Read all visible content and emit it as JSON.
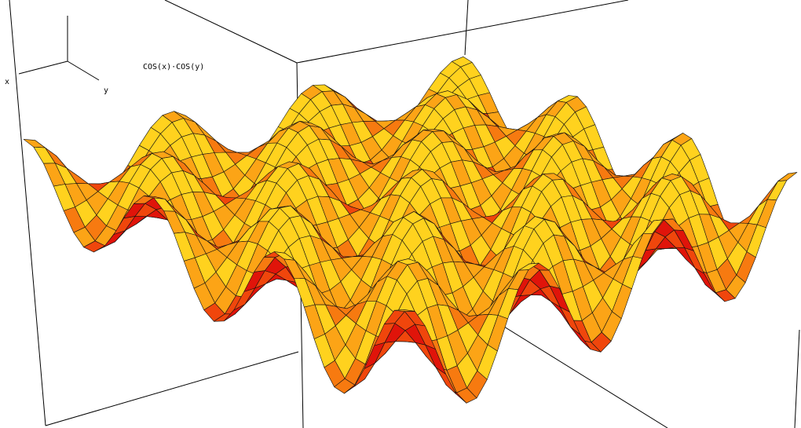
{
  "chart_data": {
    "type": "surface",
    "title": "COS(x)·COS(y)",
    "xlabel": "x",
    "ylabel": "y",
    "xlim": [
      -9.5,
      9.5
    ],
    "ylim": [
      -9.5,
      9.5
    ],
    "zlim": [
      -1,
      1
    ],
    "colors": [
      "#e0140a",
      "#f0460c",
      "#f77a10",
      "#fca416",
      "#ffd21e"
    ]
  }
}
